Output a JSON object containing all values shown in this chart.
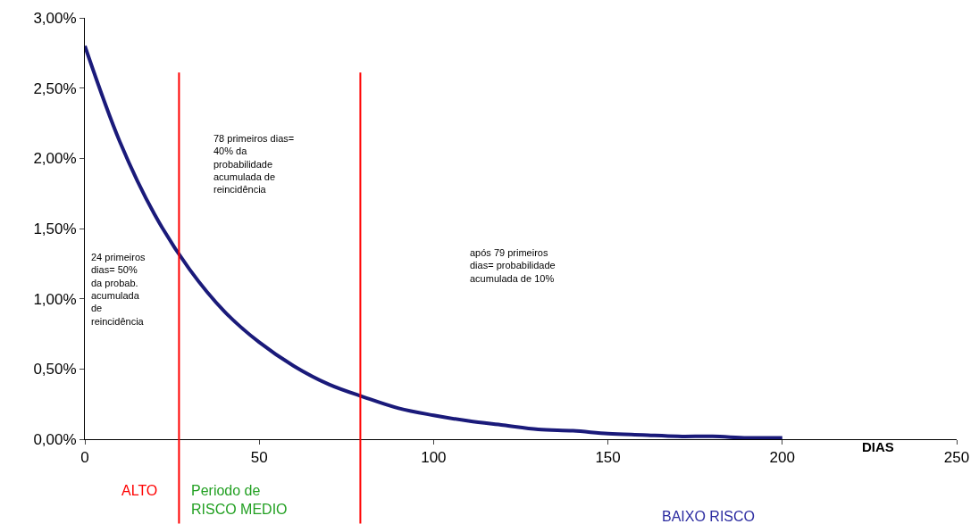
{
  "chart_data": {
    "type": "line",
    "xlabel": "DIAS",
    "x": [
      0,
      10,
      20,
      30,
      40,
      50,
      60,
      70,
      80,
      90,
      100,
      110,
      120,
      130,
      140,
      150,
      160,
      170,
      180,
      190,
      200
    ],
    "series": [
      {
        "color": "#1a1a7a",
        "values": [
          2.8,
          2.12,
          1.6,
          1.21,
          0.91,
          0.69,
          0.52,
          0.39,
          0.3,
          0.22,
          0.17,
          0.13,
          0.1,
          0.07,
          0.06,
          0.04,
          0.03,
          0.02,
          0.02,
          0.01,
          0.01
        ]
      }
    ],
    "xlim": [
      0,
      250
    ],
    "xticks": [
      0,
      50,
      100,
      150,
      200,
      250
    ],
    "ylim": [
      0,
      3.0
    ],
    "yticks": [
      {
        "value": 0,
        "label": "0,00%"
      },
      {
        "value": 0.5,
        "label": "0,50%"
      },
      {
        "value": 1.0,
        "label": "1,00%"
      },
      {
        "value": 1.5,
        "label": "1,50%"
      },
      {
        "value": 2.0,
        "label": "2,00%"
      },
      {
        "value": 2.5,
        "label": "2,50%"
      },
      {
        "value": 3.0,
        "label": "3,00%"
      }
    ],
    "marker": "none",
    "line_style": "solid",
    "ref_lines": [
      {
        "axis": "x",
        "value": 27,
        "color": "#ff0000"
      },
      {
        "axis": "x",
        "value": 79,
        "color": "#ff0000"
      }
    ],
    "annotations": [
      "24 primeiros\ndias= 50%\nda probab.\nacumulada\nde\nreincidência",
      "78 primeiros dias=\n40% da\nprobabilidade\nacumulada de\nreincidência",
      "após 79 primeiros\ndias= probabilidade\nacumulada de 10%",
      "ALTO",
      "Periodo de\nRISCO MEDIO",
      "BAIXO RISCO"
    ]
  }
}
